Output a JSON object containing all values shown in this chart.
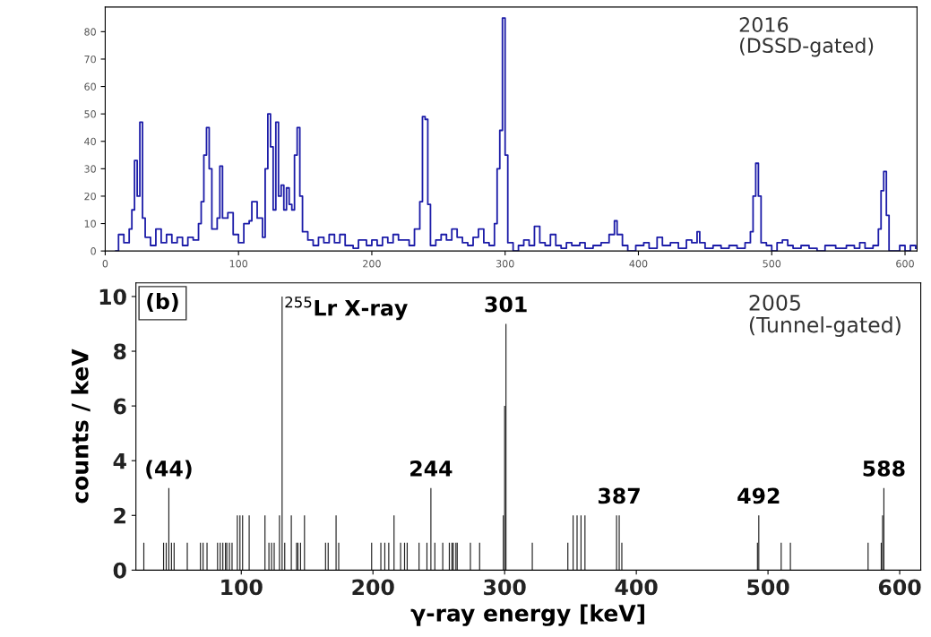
{
  "chart_data": [
    {
      "type": "step",
      "color": "#1c1ca8",
      "xlim": [
        0,
        609
      ],
      "ylim": [
        0,
        89
      ],
      "xticks": [
        0,
        100,
        200,
        300,
        400,
        500,
        600
      ],
      "yticks": [
        0,
        10,
        20,
        30,
        40,
        50,
        60,
        70,
        80
      ],
      "x": [
        8,
        10,
        14,
        18,
        20,
        22,
        24,
        26,
        28,
        30,
        34,
        38,
        42,
        46,
        50,
        54,
        58,
        62,
        66,
        70,
        72,
        74,
        76,
        78,
        80,
        84,
        86,
        88,
        92,
        96,
        100,
        104,
        108,
        110,
        114,
        118,
        120,
        122,
        124,
        126,
        128,
        130,
        132,
        134,
        136,
        138,
        140,
        142,
        144,
        146,
        148,
        152,
        156,
        160,
        164,
        168,
        172,
        176,
        180,
        186,
        190,
        196,
        200,
        204,
        208,
        212,
        216,
        220,
        224,
        228,
        232,
        236,
        238,
        240,
        242,
        244,
        248,
        252,
        256,
        260,
        264,
        268,
        272,
        276,
        280,
        284,
        288,
        292,
        294,
        296,
        298,
        300,
        302,
        306,
        310,
        314,
        318,
        322,
        326,
        330,
        334,
        338,
        342,
        346,
        350,
        356,
        360,
        366,
        372,
        378,
        382,
        384,
        388,
        392,
        398,
        404,
        408,
        414,
        418,
        424,
        430,
        436,
        440,
        444,
        446,
        450,
        456,
        462,
        468,
        474,
        480,
        484,
        486,
        488,
        490,
        492,
        496,
        500,
        504,
        508,
        512,
        516,
        522,
        528,
        534,
        540,
        548,
        556,
        562,
        566,
        570,
        576,
        580,
        582,
        584,
        586,
        588,
        594,
        596,
        600,
        604,
        608
      ],
      "values": [
        0,
        6,
        3,
        8,
        15,
        33,
        20,
        47,
        12,
        5,
        2,
        8,
        3,
        6,
        3,
        5,
        2,
        5,
        4,
        10,
        18,
        35,
        45,
        30,
        8,
        12,
        31,
        12,
        14,
        6,
        3,
        10,
        11,
        18,
        12,
        5,
        30,
        50,
        38,
        15,
        47,
        20,
        24,
        15,
        23,
        17,
        15,
        35,
        45,
        20,
        7,
        4,
        2,
        5,
        3,
        6,
        3,
        6,
        2,
        1,
        4,
        2,
        4,
        2,
        5,
        3,
        6,
        4,
        4,
        2,
        8,
        18,
        49,
        48,
        17,
        2,
        4,
        6,
        4,
        8,
        5,
        3,
        2,
        5,
        8,
        3,
        2,
        10,
        30,
        44,
        85,
        35,
        3,
        0,
        2,
        4,
        2,
        9,
        3,
        2,
        6,
        2,
        1,
        3,
        2,
        3,
        1,
        2,
        3,
        6,
        11,
        6,
        2,
        0,
        2,
        3,
        1,
        5,
        2,
        3,
        1,
        4,
        3,
        7,
        3,
        1,
        2,
        1,
        2,
        1,
        3,
        7,
        20,
        32,
        20,
        3,
        2,
        0,
        3,
        4,
        2,
        1,
        2,
        1,
        0,
        2,
        1,
        2,
        1,
        3,
        1,
        2,
        8,
        22,
        29,
        13,
        0,
        0,
        2,
        0,
        2,
        1
      ],
      "annotations": [
        "2016\n(DSSD-gated)"
      ]
    },
    {
      "type": "bar",
      "color": "#222222",
      "xlim": [
        20,
        616
      ],
      "ylim": [
        0,
        10.5
      ],
      "xticks": [
        100,
        200,
        300,
        400,
        500,
        600
      ],
      "yticks": [
        0,
        2,
        4,
        6,
        8,
        10
      ],
      "xlabel": "γ-ray energy [keV]",
      "ylabel": "counts / keV",
      "x": [
        26,
        41,
        43,
        45,
        47,
        49,
        59,
        69,
        71,
        74,
        82,
        84,
        86,
        88,
        89,
        91,
        93,
        97,
        99,
        101,
        106,
        118,
        121,
        123,
        125,
        129,
        131,
        133,
        138,
        142,
        143,
        145,
        148,
        164,
        166,
        172,
        174,
        199,
        206,
        209,
        212,
        216,
        221,
        224,
        226,
        235,
        241,
        244,
        247,
        253,
        258,
        260,
        261,
        263,
        264,
        274,
        281,
        299,
        300,
        301,
        321,
        348,
        352,
        355,
        358,
        361,
        385,
        387,
        389,
        492,
        493,
        510,
        517,
        576,
        586,
        587,
        588
      ],
      "values": [
        1,
        1,
        1,
        3,
        1,
        1,
        1,
        1,
        1,
        1,
        1,
        1,
        1,
        1,
        1,
        1,
        1,
        2,
        2,
        2,
        2,
        2,
        1,
        1,
        1,
        2,
        10,
        1,
        2,
        1,
        1,
        1,
        2,
        1,
        1,
        2,
        1,
        1,
        1,
        1,
        1,
        2,
        1,
        1,
        1,
        1,
        1,
        3,
        1,
        1,
        1,
        1,
        1,
        1,
        1,
        1,
        1,
        2,
        6,
        9,
        1,
        1,
        2,
        2,
        2,
        2,
        2,
        2,
        1,
        1,
        2,
        1,
        1,
        1,
        1,
        2,
        3
      ],
      "annotations": [
        "(b)",
        "2005\n(Tunnel-gated)",
        {
          "text": "$^{255}$Lr X-ray",
          "x": 131,
          "y": 10
        },
        {
          "text": "301",
          "x": 301,
          "y": 9
        },
        {
          "text": "(44)",
          "x": 45,
          "y": 3
        },
        {
          "text": "244",
          "x": 244,
          "y": 3
        },
        {
          "text": "387",
          "x": 387,
          "y": 2
        },
        {
          "text": "492",
          "x": 493,
          "y": 2
        },
        {
          "text": "588",
          "x": 588,
          "y": 3
        }
      ]
    }
  ]
}
